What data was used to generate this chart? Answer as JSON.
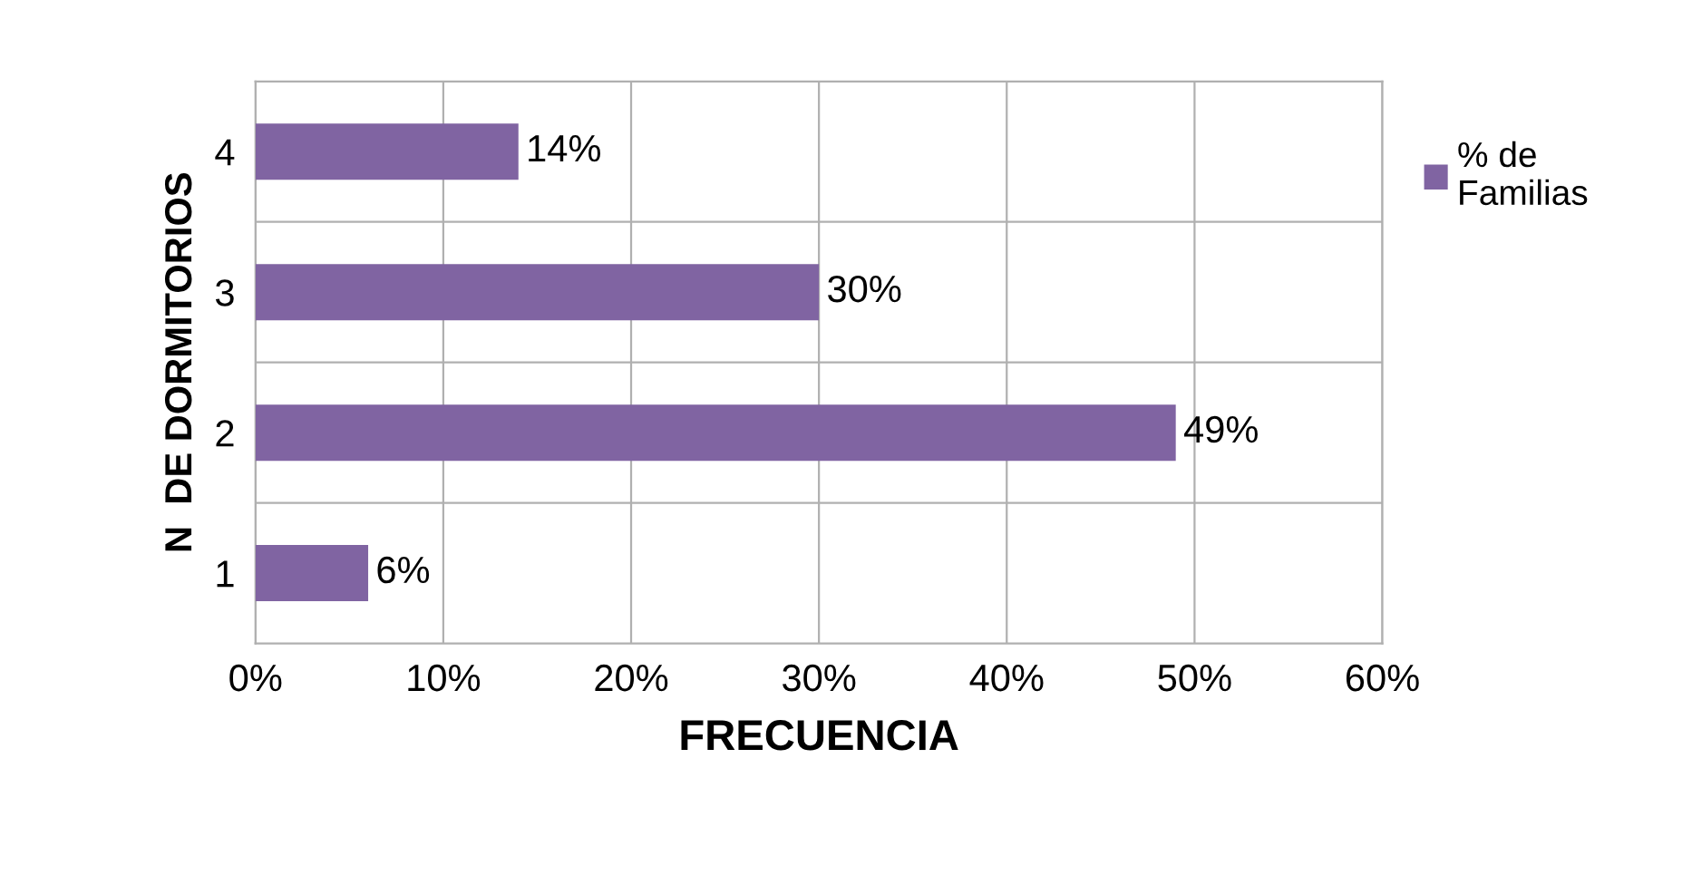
{
  "chart_data": {
    "type": "bar",
    "orientation": "horizontal",
    "categories": [
      "4",
      "3",
      "2",
      "1"
    ],
    "series": [
      {
        "name": "% de Familias",
        "color": "#8064a2",
        "values": [
          14,
          30,
          49,
          6
        ]
      }
    ],
    "value_labels": [
      "14%",
      "30%",
      "49%",
      "6%"
    ],
    "xlim": [
      0,
      60
    ],
    "xticks": [
      {
        "value": 0,
        "label": "0%"
      },
      {
        "value": 10,
        "label": "10%"
      },
      {
        "value": 20,
        "label": "20%"
      },
      {
        "value": 30,
        "label": "30%"
      },
      {
        "value": 40,
        "label": "40%"
      },
      {
        "value": 50,
        "label": "50%"
      },
      {
        "value": 60,
        "label": "60%"
      }
    ],
    "xlabel": "FRECUENCIA",
    "ylabel": "N  DE DORMITORIOS",
    "grid": "x",
    "legend": "top right"
  }
}
